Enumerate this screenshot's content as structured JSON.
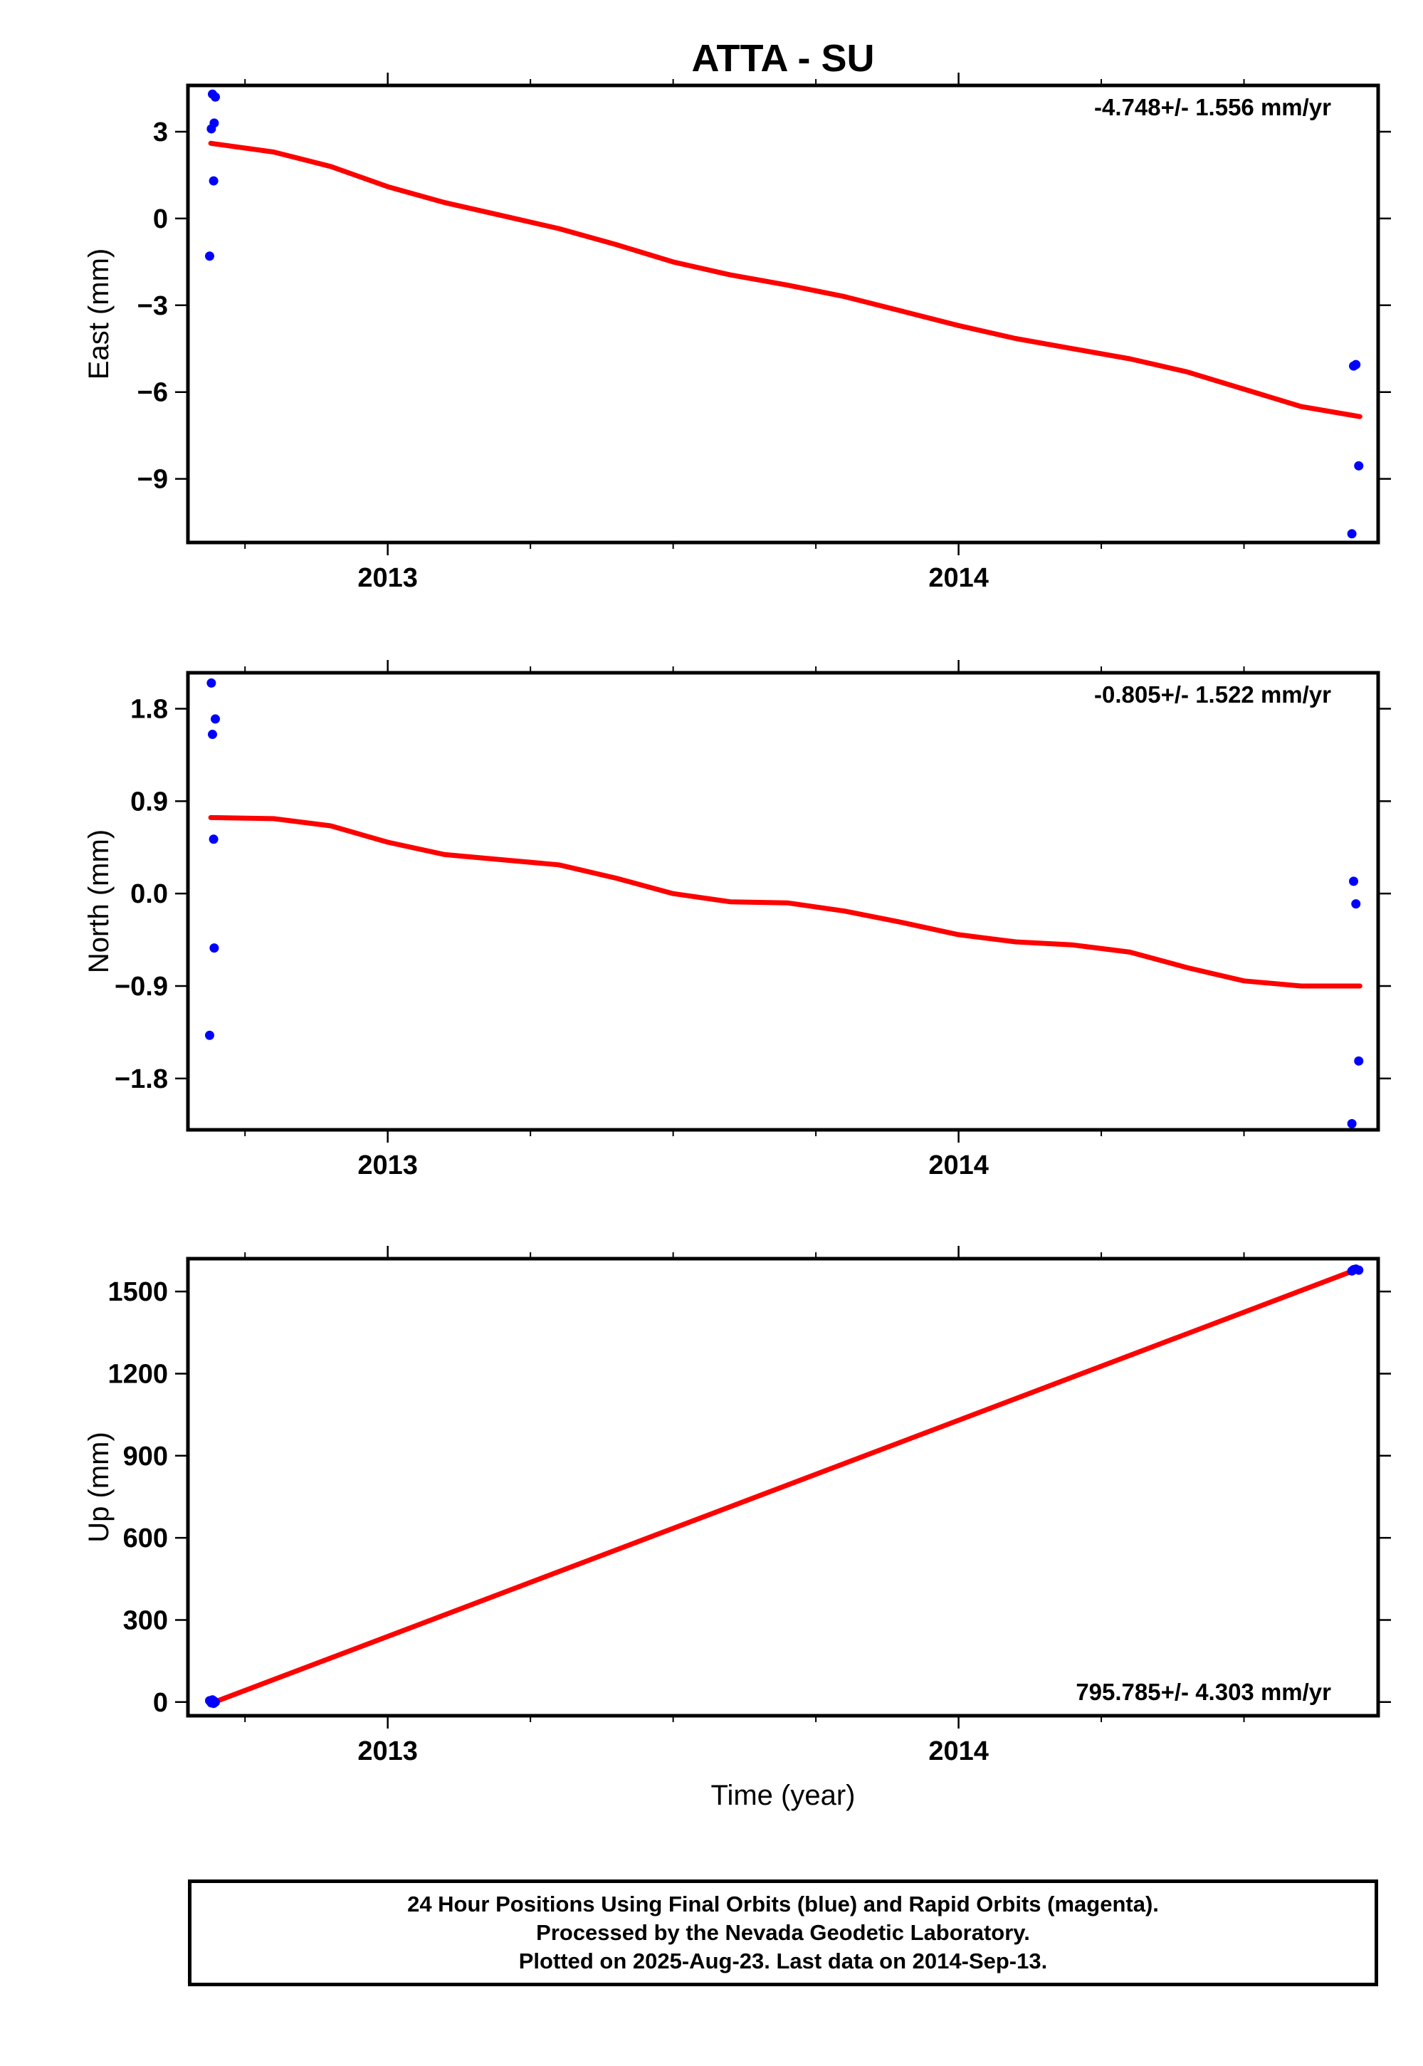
{
  "title": "ATTA - SU",
  "colors": {
    "data_points": "#0000ff",
    "model_line": "#ff0000",
    "axes": "#000000"
  },
  "chart_data": [
    {
      "type": "scatter",
      "ylabel": "East (mm)",
      "xlabel": "",
      "rate_label": "-4.748+/- 1.556 mm/yr",
      "rate_position": "top-right",
      "xlim": [
        2012.65,
        2014.735
      ],
      "ylim": [
        -11.2,
        4.6
      ],
      "x_ticks": [
        2013,
        2014
      ],
      "y_ticks": [
        3,
        0,
        -3,
        -6,
        -9
      ],
      "y_tick_labels": [
        "3",
        "0",
        "−3",
        "−6",
        "−9"
      ],
      "series": [
        {
          "type": "scatter",
          "x": [
            2012.688,
            2012.691,
            2012.693,
            2012.695,
            2012.696,
            2012.698,
            2014.689,
            2014.692,
            2014.696,
            2014.701
          ],
          "y": [
            -1.3,
            3.1,
            4.3,
            1.3,
            3.3,
            4.2,
            -10.9,
            -5.1,
            -5.05,
            -8.55
          ]
        },
        {
          "type": "line",
          "x": [
            2012.69,
            2012.8,
            2012.9,
            2013.0,
            2013.1,
            2013.2,
            2013.3,
            2013.4,
            2013.5,
            2013.6,
            2013.7,
            2013.8,
            2013.9,
            2014.0,
            2014.1,
            2014.2,
            2014.3,
            2014.4,
            2014.5,
            2014.6,
            2014.703
          ],
          "y": [
            2.6,
            2.3,
            1.8,
            1.1,
            0.55,
            0.1,
            -0.35,
            -0.9,
            -1.5,
            -1.95,
            -2.3,
            -2.7,
            -3.2,
            -3.7,
            -4.15,
            -4.5,
            -4.85,
            -5.3,
            -5.9,
            -6.5,
            -6.85
          ]
        }
      ]
    },
    {
      "type": "scatter",
      "ylabel": "North (mm)",
      "xlabel": "",
      "rate_label": "-0.805+/- 1.522 mm/yr",
      "rate_position": "top-right",
      "xlim": [
        2012.65,
        2014.735
      ],
      "ylim": [
        -2.3,
        2.15
      ],
      "x_ticks": [
        2013,
        2014
      ],
      "y_ticks": [
        1.8,
        0.9,
        0.0,
        -0.9,
        -1.8
      ],
      "y_tick_labels": [
        "1.8",
        "0.9",
        "0.0",
        "−0.9",
        "−1.8"
      ],
      "series": [
        {
          "type": "scatter",
          "x": [
            2012.688,
            2012.691,
            2012.693,
            2012.695,
            2012.696,
            2012.698,
            2014.689,
            2014.692,
            2014.696,
            2014.701
          ],
          "y": [
            -1.38,
            2.05,
            1.55,
            0.53,
            -0.53,
            1.7,
            -2.24,
            0.12,
            -0.1,
            -1.63
          ]
        },
        {
          "type": "line",
          "x": [
            2012.69,
            2012.8,
            2012.9,
            2013.0,
            2013.1,
            2013.2,
            2013.3,
            2013.4,
            2013.5,
            2013.6,
            2013.7,
            2013.8,
            2013.9,
            2014.0,
            2014.1,
            2014.2,
            2014.3,
            2014.4,
            2014.5,
            2014.6,
            2014.703
          ],
          "y": [
            0.74,
            0.73,
            0.66,
            0.5,
            0.38,
            0.33,
            0.28,
            0.15,
            0.0,
            -0.08,
            -0.09,
            -0.17,
            -0.28,
            -0.4,
            -0.47,
            -0.5,
            -0.57,
            -0.72,
            -0.85,
            -0.9,
            -0.9
          ]
        }
      ]
    },
    {
      "type": "scatter",
      "ylabel": "Up (mm)",
      "xlabel": "Time (year)",
      "rate_label": "795.785+/- 4.303 mm/yr",
      "rate_position": "bottom-right",
      "xlim": [
        2012.65,
        2014.735
      ],
      "ylim": [
        -50,
        1620
      ],
      "x_ticks": [
        2013,
        2014
      ],
      "y_ticks": [
        0,
        300,
        600,
        900,
        1200,
        1500
      ],
      "y_tick_labels": [
        "0",
        "300",
        "600",
        "900",
        "1200",
        "1500"
      ],
      "series": [
        {
          "type": "scatter",
          "x": [
            2012.688,
            2012.691,
            2012.693,
            2012.695,
            2012.696,
            2012.698,
            2014.689,
            2014.692,
            2014.696,
            2014.701
          ],
          "y": [
            5,
            -3,
            8,
            -5,
            3,
            0,
            1575,
            1580,
            1582,
            1578
          ]
        },
        {
          "type": "line",
          "x": [
            2012.69,
            2014.703
          ],
          "y": [
            -5,
            1585
          ]
        }
      ]
    }
  ],
  "footer": {
    "line1": "24 Hour Positions Using Final Orbits (blue) and Rapid Orbits (magenta).",
    "line2": "Processed by the Nevada Geodetic Laboratory.",
    "line3": "Plotted on 2025-Aug-23. Last data on 2014-Sep-13."
  }
}
